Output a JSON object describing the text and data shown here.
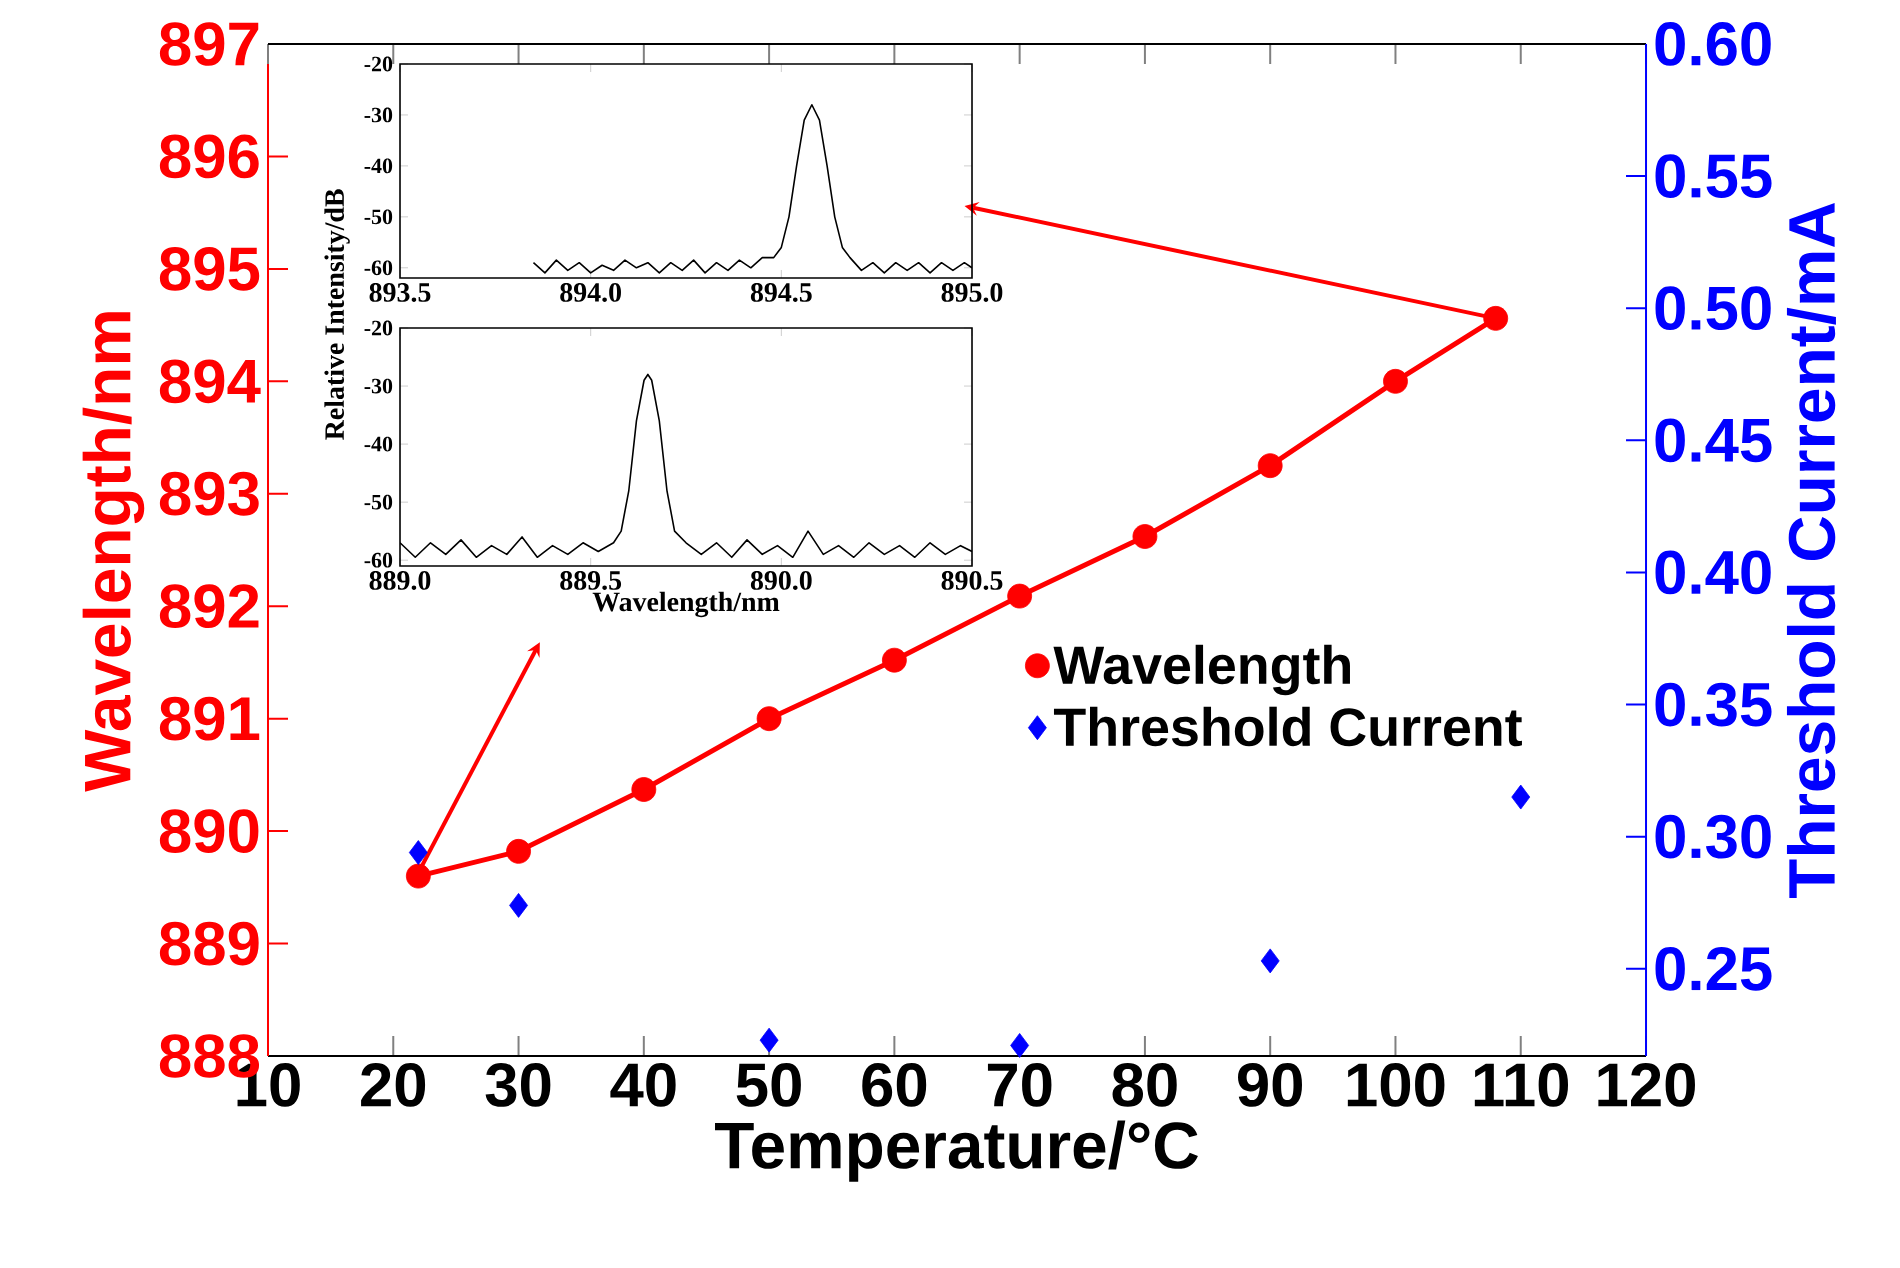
{
  "chart_data": [
    {
      "type": "scatter",
      "xlabel": "Temperature/°C",
      "ylabel": "Wavelength/nm",
      "y2label": "Threshold Current/mA",
      "legend": "right",
      "xlim": [
        10,
        120
      ],
      "xticks": [
        10,
        20,
        30,
        40,
        50,
        60,
        70,
        80,
        90,
        100,
        110,
        120
      ],
      "ylim": [
        888,
        897
      ],
      "yticks": [
        888,
        889,
        890,
        891,
        892,
        893,
        894,
        895,
        896,
        897
      ],
      "y2lim": [
        0.217,
        0.6
      ],
      "y2ticks": [
        0.25,
        {
          "value": 0.3,
          "label": "0.30"
        },
        0.35,
        {
          "value": 0.4,
          "label": "0.40"
        },
        0.45,
        {
          "value": 0.5,
          "label": "0.50"
        },
        0.55,
        {
          "value": 0.6,
          "label": "0.60"
        }
      ],
      "series": [
        {
          "name": "Wavelength",
          "type": "scatter",
          "color": "#ff0000",
          "marker": "circle",
          "x": [
            22,
            30,
            40,
            50,
            60,
            70,
            80,
            90,
            100,
            108
          ],
          "values": [
            889.6,
            889.82,
            890.37,
            891.0,
            891.52,
            892.09,
            892.62,
            893.25,
            894.0,
            894.56
          ]
        },
        {
          "type": "line",
          "color": "#ff0000",
          "line_style": "solid",
          "x": [
            22,
            30,
            40,
            50,
            60,
            70,
            80,
            90,
            100,
            108
          ],
          "values": [
            889.6,
            889.82,
            890.37,
            891.0,
            891.52,
            892.09,
            892.62,
            893.25,
            894.0,
            894.56
          ]
        },
        {
          "name": "Threshold Current",
          "type": "scatter",
          "axis": "y2",
          "color": "#0000ff",
          "marker": "diamond",
          "x": [
            22,
            30,
            50,
            70,
            90,
            110
          ],
          "values": [
            0.294,
            0.274,
            0.223,
            0.221,
            0.253,
            0.315
          ]
        }
      ]
    },
    {
      "type": "line",
      "ylabel": "Relative Intensity/dB",
      "xlim": [
        893.5,
        895.0
      ],
      "xticks": [
        893.5,
        {
          "value": 894.0,
          "label": "894.0"
        },
        894.5,
        {
          "value": 895.0,
          "label": "895.0"
        }
      ],
      "ylim": [
        -62,
        -20
      ],
      "yticks": [
        -60,
        -50,
        -40,
        -30,
        -20
      ],
      "series": [
        {
          "color": "#000000",
          "x": [
            893.85,
            893.88,
            893.91,
            893.94,
            893.97,
            894.0,
            894.03,
            894.06,
            894.09,
            894.12,
            894.15,
            894.18,
            894.21,
            894.24,
            894.27,
            894.3,
            894.33,
            894.36,
            894.39,
            894.42,
            894.45,
            894.48,
            894.5,
            894.52,
            894.54,
            894.56,
            894.58,
            894.6,
            894.62,
            894.64,
            894.66,
            894.68,
            894.71,
            894.74,
            894.77,
            894.8,
            894.83,
            894.86,
            894.89,
            894.92,
            894.95,
            894.98,
            895.0
          ],
          "values": [
            -59,
            -61,
            -58.5,
            -60.5,
            -59,
            -61,
            -59.5,
            -60.5,
            -58.5,
            -60,
            -59,
            -61,
            -59,
            -60.5,
            -58.5,
            -61,
            -59,
            -60.5,
            -58.5,
            -60,
            -58,
            -58,
            -56,
            -50,
            -40,
            -31,
            -28,
            -31,
            -40,
            -50,
            -56,
            -58,
            -60.5,
            -59,
            -61,
            -59,
            -60.5,
            -59,
            -61,
            -59,
            -60.5,
            -59,
            -60
          ]
        }
      ]
    },
    {
      "type": "line",
      "xlabel": "Wavelength/nm",
      "xlim": [
        889.0,
        890.5
      ],
      "xticks": [
        {
          "value": 889.0,
          "label": "889.0"
        },
        889.5,
        {
          "value": 890.0,
          "label": "890.0"
        },
        890.5
      ],
      "ylim": [
        -61,
        -20
      ],
      "yticks": [
        -60,
        -50,
        -40,
        -30,
        -20
      ],
      "series": [
        {
          "color": "#000000",
          "x": [
            889.0,
            889.04,
            889.08,
            889.12,
            889.16,
            889.2,
            889.24,
            889.28,
            889.32,
            889.36,
            889.4,
            889.44,
            889.48,
            889.52,
            889.56,
            889.58,
            889.6,
            889.62,
            889.64,
            889.65,
            889.66,
            889.68,
            889.7,
            889.72,
            889.75,
            889.79,
            889.83,
            889.87,
            889.91,
            889.95,
            889.99,
            890.03,
            890.07,
            890.11,
            890.15,
            890.19,
            890.23,
            890.27,
            890.31,
            890.35,
            890.39,
            890.43,
            890.47,
            890.5
          ],
          "values": [
            -57,
            -59.5,
            -57,
            -59,
            -56.5,
            -59.5,
            -57.5,
            -59,
            -56,
            -59.5,
            -57.5,
            -59,
            -57,
            -58.5,
            -57,
            -55,
            -48,
            -36,
            -29,
            -28,
            -29,
            -36,
            -48,
            -55,
            -57,
            -59,
            -57,
            -59.5,
            -56.5,
            -59,
            -57.5,
            -59.5,
            -55,
            -59,
            -57.5,
            -59.5,
            -57,
            -59,
            -57.5,
            -59.5,
            -57,
            -59,
            -57.5,
            -58.5
          ]
        }
      ]
    }
  ]
}
